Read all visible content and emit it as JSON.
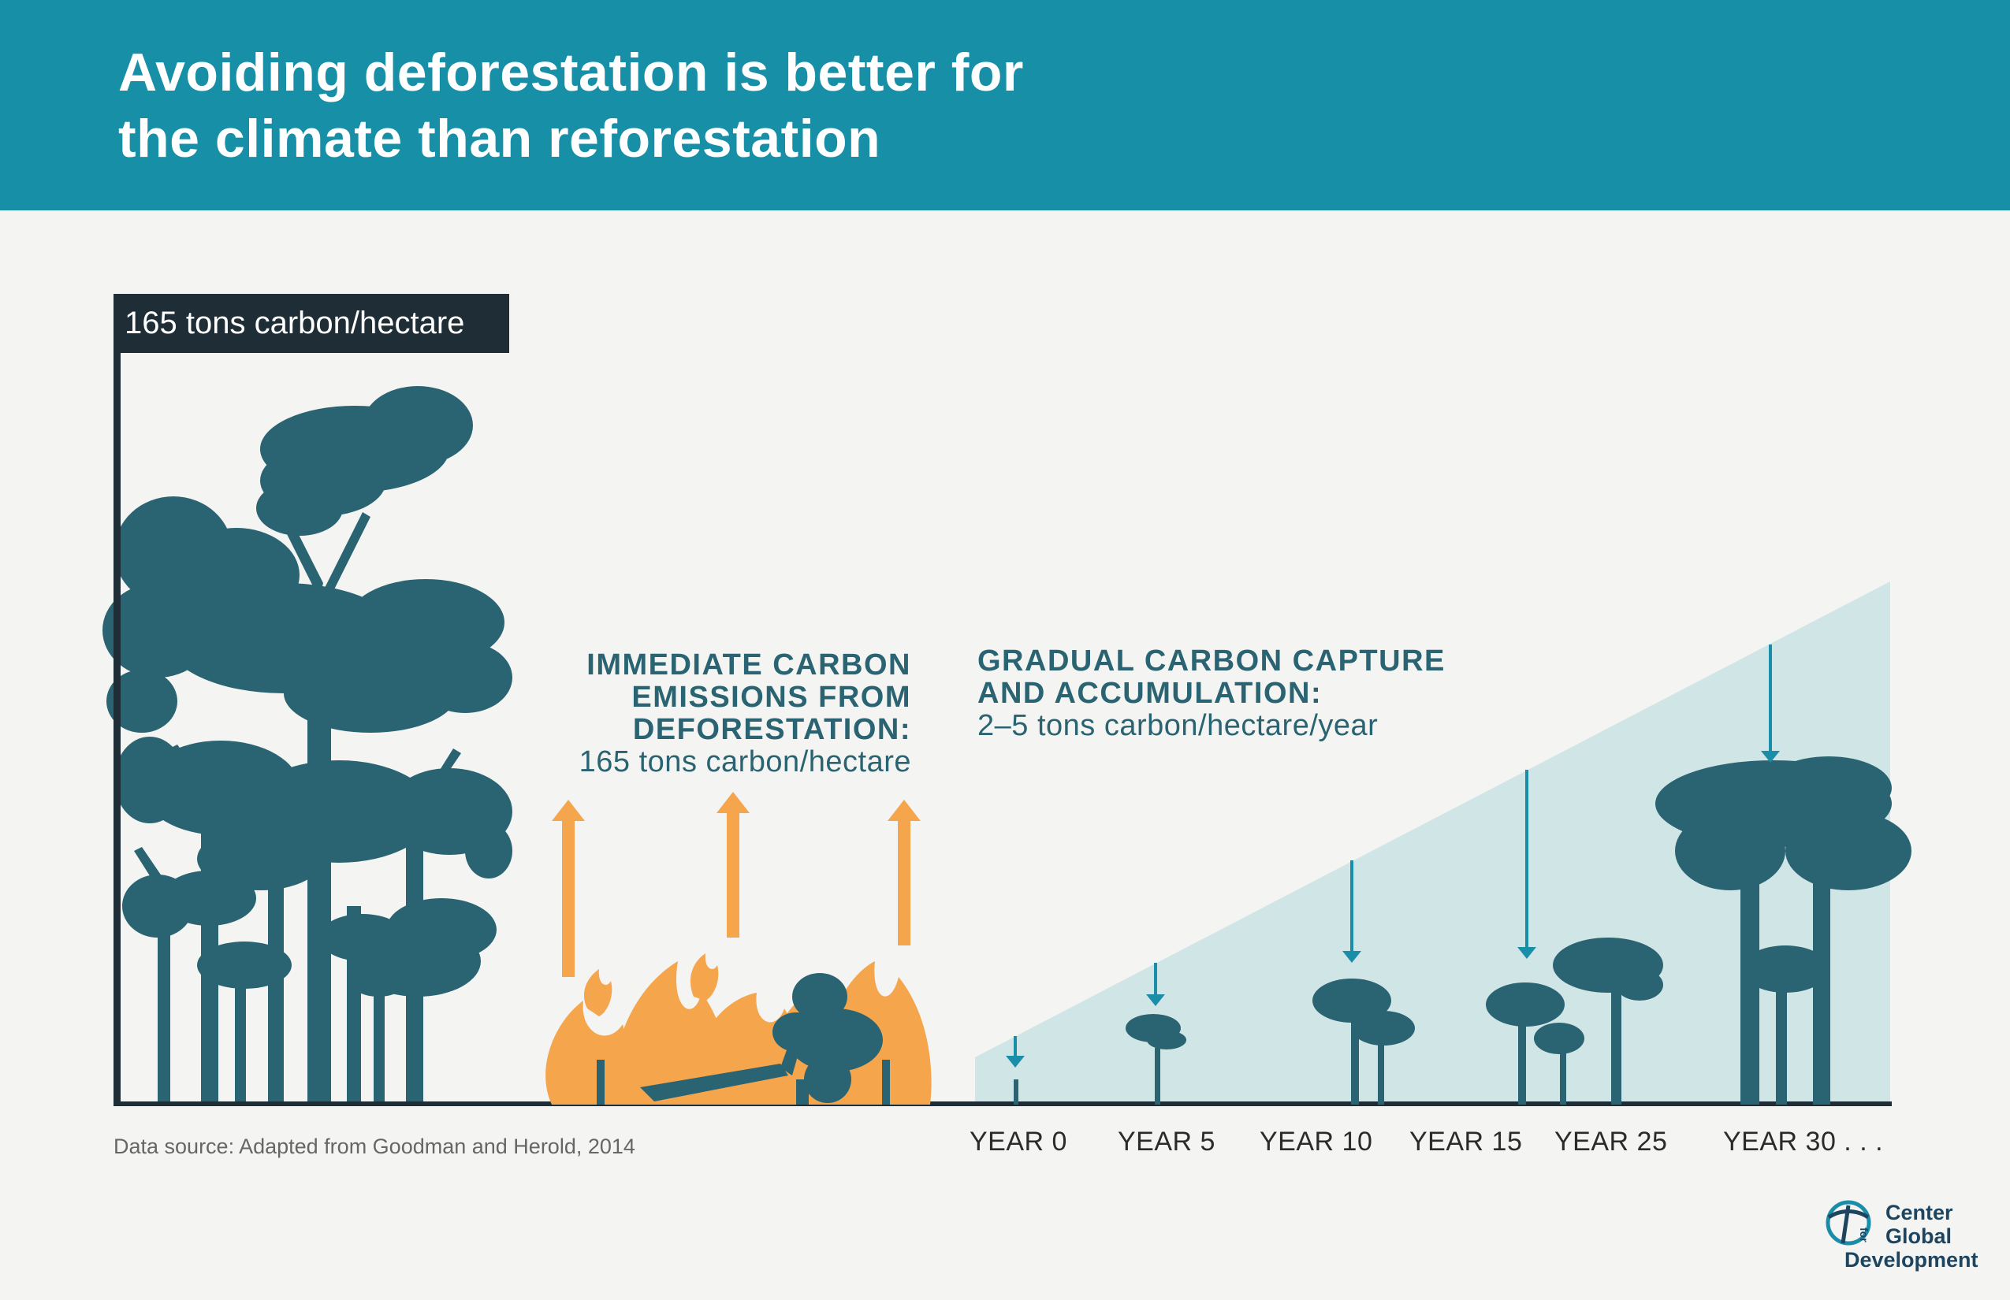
{
  "header": {
    "title_line1": "Avoiding deforestation is better for",
    "title_line2": "the climate than reforestation",
    "background_color": "#178fa6"
  },
  "scale_label": "165 tons carbon/hectare",
  "emissions_note": {
    "line1": "IMMEDIATE CARBON",
    "line2": "EMISSIONS FROM",
    "line3": "DEFORESTATION:",
    "value": "165 tons carbon/hectare"
  },
  "capture_note": {
    "line1": "GRADUAL CARBON CAPTURE",
    "line2": "AND ACCUMULATION:",
    "value": "2–5 tons carbon/hectare/year"
  },
  "timeline": {
    "labels": [
      "YEAR 0",
      "YEAR 5",
      "YEAR 10",
      "YEAR 15",
      "YEAR 25",
      "YEAR 30 . . ."
    ]
  },
  "source": "Data source: Adapted from Goodman and Herold, 2014",
  "logo": {
    "line1": "Center",
    "for": "for",
    "line2": "Global",
    "line3": "Development"
  },
  "colors": {
    "tree": "#2a6371",
    "fire": "#f5a54c",
    "growth_area": "#cfe5e6",
    "arrow": "#1a8ea8",
    "axis": "#1f2e36"
  },
  "icons": [
    "forest-icon",
    "fire-icon",
    "fallen-tree-icon",
    "sapling-icon",
    "cgd-globe-icon"
  ]
}
